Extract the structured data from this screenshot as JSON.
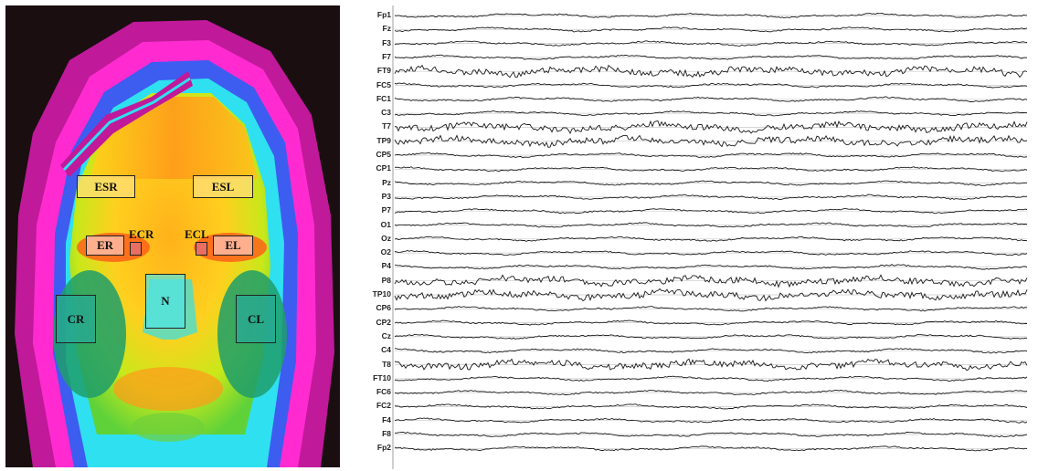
{
  "thermal_image": {
    "regions": [
      {
        "id": "ESR",
        "label": "ESR"
      },
      {
        "id": "ESL",
        "label": "ESL"
      },
      {
        "id": "ER",
        "label": "ER"
      },
      {
        "id": "ECR",
        "label": "ECR"
      },
      {
        "id": "ECL",
        "label": "ECL"
      },
      {
        "id": "EL",
        "label": "EL"
      },
      {
        "id": "N",
        "label": "N"
      },
      {
        "id": "CR",
        "label": "CR"
      },
      {
        "id": "CL",
        "label": "CL"
      }
    ],
    "palette": [
      "#1a0e10",
      "#c0199a",
      "#ff2bd0",
      "#3d5cf0",
      "#2fe0f0",
      "#1f9e6a",
      "#b8e81a",
      "#ffd21a",
      "#ff9a1a",
      "#ff5a1a"
    ]
  },
  "eeg": {
    "channels": [
      "Fp1",
      "Fz",
      "F3",
      "F7",
      "FT9",
      "FC5",
      "FC1",
      "C3",
      "T7",
      "TP9",
      "CP5",
      "CP1",
      "Pz",
      "P3",
      "P7",
      "O1",
      "Oz",
      "O2",
      "P4",
      "P8",
      "TP10",
      "CP6",
      "CP2",
      "Cz",
      "C4",
      "T8",
      "FT10",
      "FC6",
      "FC2",
      "F4",
      "F8",
      "Fp2"
    ],
    "trace_color": "#1b1b1b",
    "baseline_color": "#c8c8c8"
  }
}
